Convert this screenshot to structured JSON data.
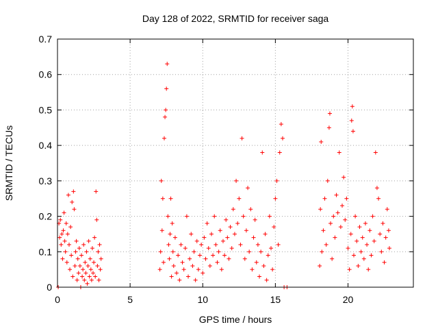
{
  "chart_data": {
    "type": "scatter",
    "title": "Day 128 of 2022, SRMTID for receiver saga",
    "xlabel": "GPS time / hours",
    "ylabel": "SRMTID / TECUs",
    "xlim": [
      0,
      24.5
    ],
    "ylim": [
      0,
      0.7
    ],
    "xticks": [
      0,
      5,
      10,
      15,
      20
    ],
    "yticks": [
      0,
      0.1,
      0.2,
      0.3,
      0.4,
      0.5,
      0.6,
      0.7
    ],
    "xtick_labels": [
      "0",
      "5",
      "10",
      "15",
      "20"
    ],
    "ytick_labels": [
      "0",
      "0.1",
      "0.2",
      "0.3",
      "0.4",
      "0.5",
      "0.6",
      "0.7"
    ],
    "grid": true,
    "marker": "+",
    "color": "#ff0000",
    "series": [
      {
        "name": "SRMTID",
        "points": [
          [
            0.05,
            0.0
          ],
          [
            0.1,
            0.18
          ],
          [
            0.15,
            0.14
          ],
          [
            0.2,
            0.19
          ],
          [
            0.25,
            0.12
          ],
          [
            0.3,
            0.15
          ],
          [
            0.35,
            0.08
          ],
          [
            0.4,
            0.16
          ],
          [
            0.45,
            0.21
          ],
          [
            0.5,
            0.13
          ],
          [
            0.55,
            0.1
          ],
          [
            0.6,
            0.18
          ],
          [
            0.65,
            0.07
          ],
          [
            0.7,
            0.15
          ],
          [
            0.75,
            0.26
          ],
          [
            0.8,
            0.12
          ],
          [
            0.85,
            0.05
          ],
          [
            0.9,
            0.17
          ],
          [
            0.95,
            0.09
          ],
          [
            1.0,
            0.24
          ],
          [
            1.05,
            0.03
          ],
          [
            1.1,
            0.27
          ],
          [
            1.15,
            0.22
          ],
          [
            1.2,
            0.06
          ],
          [
            1.25,
            0.1
          ],
          [
            1.3,
            0.13
          ],
          [
            1.35,
            0.02
          ],
          [
            1.4,
            0.08
          ],
          [
            1.45,
            0.04
          ],
          [
            1.5,
            0.11
          ],
          [
            1.55,
            0.06
          ],
          [
            1.6,
            0.0
          ],
          [
            1.65,
            0.09
          ],
          [
            1.7,
            0.03
          ],
          [
            1.75,
            0.05
          ],
          [
            1.8,
            0.12
          ],
          [
            1.85,
            0.02
          ],
          [
            1.9,
            0.07
          ],
          [
            1.95,
            0.04
          ],
          [
            2.0,
            0.1
          ],
          [
            2.05,
            0.01
          ],
          [
            2.1,
            0.06
          ],
          [
            2.15,
            0.13
          ],
          [
            2.2,
            0.03
          ],
          [
            2.25,
            0.08
          ],
          [
            2.3,
            0.05
          ],
          [
            2.35,
            0.02
          ],
          [
            2.4,
            0.11
          ],
          [
            2.45,
            0.04
          ],
          [
            2.5,
            0.07
          ],
          [
            2.55,
            0.14
          ],
          [
            2.6,
            0.03
          ],
          [
            2.65,
            0.27
          ],
          [
            2.7,
            0.19
          ],
          [
            2.75,
            0.06
          ],
          [
            2.8,
            0.1
          ],
          [
            2.85,
            0.02
          ],
          [
            2.9,
            0.12
          ],
          [
            2.95,
            0.05
          ],
          [
            3.0,
            0.08
          ],
          [
            7.05,
            0.05
          ],
          [
            7.1,
            0.1
          ],
          [
            7.15,
            0.3
          ],
          [
            7.2,
            0.16
          ],
          [
            7.25,
            0.25
          ],
          [
            7.3,
            0.07
          ],
          [
            7.35,
            0.42
          ],
          [
            7.4,
            0.48
          ],
          [
            7.45,
            0.5
          ],
          [
            7.5,
            0.56
          ],
          [
            7.55,
            0.63
          ],
          [
            7.6,
            0.2
          ],
          [
            7.65,
            0.12
          ],
          [
            7.7,
            0.08
          ],
          [
            7.75,
            0.15
          ],
          [
            7.8,
            0.25
          ],
          [
            7.85,
            0.03
          ],
          [
            7.9,
            0.18
          ],
          [
            7.95,
            0.1
          ],
          [
            8.0,
            0.06
          ],
          [
            8.1,
            0.14
          ],
          [
            8.2,
            0.04
          ],
          [
            8.3,
            0.09
          ],
          [
            8.4,
            0.02
          ],
          [
            8.5,
            0.12
          ],
          [
            8.6,
            0.07
          ],
          [
            8.7,
            0.05
          ],
          [
            8.8,
            0.11
          ],
          [
            8.9,
            0.2
          ],
          [
            9.0,
            0.03
          ],
          [
            9.1,
            0.08
          ],
          [
            9.2,
            0.15
          ],
          [
            9.3,
            0.06
          ],
          [
            9.4,
            0.1
          ],
          [
            9.5,
            0.02
          ],
          [
            9.6,
            0.13
          ],
          [
            9.7,
            0.05
          ],
          [
            9.8,
            0.09
          ],
          [
            9.9,
            0.12
          ],
          [
            10.0,
            0.04
          ],
          [
            10.1,
            0.14
          ],
          [
            10.2,
            0.08
          ],
          [
            10.3,
            0.18
          ],
          [
            10.4,
            0.11
          ],
          [
            10.5,
            0.06
          ],
          [
            10.6,
            0.15
          ],
          [
            10.7,
            0.09
          ],
          [
            10.8,
            0.2
          ],
          [
            10.9,
            0.12
          ],
          [
            11.0,
            0.07
          ],
          [
            11.1,
            0.1
          ],
          [
            11.2,
            0.16
          ],
          [
            11.3,
            0.05
          ],
          [
            11.4,
            0.13
          ],
          [
            11.5,
            0.09
          ],
          [
            11.6,
            0.19
          ],
          [
            11.7,
            0.14
          ],
          [
            11.8,
            0.08
          ],
          [
            11.9,
            0.17
          ],
          [
            12.0,
            0.11
          ],
          [
            12.1,
            0.22
          ],
          [
            12.2,
            0.15
          ],
          [
            12.3,
            0.3
          ],
          [
            12.4,
            0.18
          ],
          [
            12.5,
            0.25
          ],
          [
            12.6,
            0.12
          ],
          [
            12.7,
            0.42
          ],
          [
            12.8,
            0.2
          ],
          [
            12.9,
            0.08
          ],
          [
            13.0,
            0.16
          ],
          [
            13.1,
            0.28
          ],
          [
            13.2,
            0.1
          ],
          [
            13.3,
            0.22
          ],
          [
            13.4,
            0.05
          ],
          [
            13.5,
            0.14
          ],
          [
            13.6,
            0.19
          ],
          [
            13.7,
            0.07
          ],
          [
            13.8,
            0.12
          ],
          [
            13.9,
            0.03
          ],
          [
            14.0,
            0.1
          ],
          [
            14.1,
            0.38
          ],
          [
            14.2,
            0.06
          ],
          [
            14.3,
            0.15
          ],
          [
            14.4,
            0.02
          ],
          [
            14.5,
            0.09
          ],
          [
            14.6,
            0.2
          ],
          [
            14.7,
            0.11
          ],
          [
            14.8,
            0.05
          ],
          [
            14.9,
            0.17
          ],
          [
            15.0,
            0.25
          ],
          [
            15.1,
            0.3
          ],
          [
            15.2,
            0.12
          ],
          [
            15.3,
            0.38
          ],
          [
            15.4,
            0.46
          ],
          [
            15.5,
            0.42
          ],
          [
            15.6,
            0.0
          ],
          [
            15.8,
            0.0
          ],
          [
            18.05,
            0.06
          ],
          [
            18.1,
            0.22
          ],
          [
            18.15,
            0.41
          ],
          [
            18.2,
            0.1
          ],
          [
            18.3,
            0.16
          ],
          [
            18.4,
            0.25
          ],
          [
            18.5,
            0.12
          ],
          [
            18.6,
            0.3
          ],
          [
            18.7,
            0.45
          ],
          [
            18.75,
            0.49
          ],
          [
            18.8,
            0.18
          ],
          [
            18.9,
            0.08
          ],
          [
            19.0,
            0.2
          ],
          [
            19.1,
            0.14
          ],
          [
            19.2,
            0.26
          ],
          [
            19.3,
            0.21
          ],
          [
            19.4,
            0.38
          ],
          [
            19.5,
            0.17
          ],
          [
            19.6,
            0.23
          ],
          [
            19.7,
            0.31
          ],
          [
            19.8,
            0.19
          ],
          [
            19.9,
            0.25
          ],
          [
            20.0,
            0.11
          ],
          [
            20.1,
            0.05
          ],
          [
            20.2,
            0.15
          ],
          [
            20.25,
            0.47
          ],
          [
            20.3,
            0.51
          ],
          [
            20.35,
            0.44
          ],
          [
            20.4,
            0.09
          ],
          [
            20.5,
            0.2
          ],
          [
            20.6,
            0.13
          ],
          [
            20.7,
            0.06
          ],
          [
            20.8,
            0.17
          ],
          [
            20.9,
            0.1
          ],
          [
            21.0,
            0.14
          ],
          [
            21.1,
            0.08
          ],
          [
            21.2,
            0.18
          ],
          [
            21.3,
            0.12
          ],
          [
            21.4,
            0.05
          ],
          [
            21.5,
            0.16
          ],
          [
            21.6,
            0.09
          ],
          [
            21.7,
            0.2
          ],
          [
            21.8,
            0.13
          ],
          [
            21.9,
            0.38
          ],
          [
            22.0,
            0.28
          ],
          [
            22.1,
            0.25
          ],
          [
            22.2,
            0.15
          ],
          [
            22.3,
            0.1
          ],
          [
            22.4,
            0.18
          ],
          [
            22.5,
            0.07
          ],
          [
            22.6,
            0.14
          ],
          [
            22.7,
            0.22
          ],
          [
            22.8,
            0.16
          ],
          [
            22.85,
            0.11
          ]
        ]
      }
    ]
  }
}
